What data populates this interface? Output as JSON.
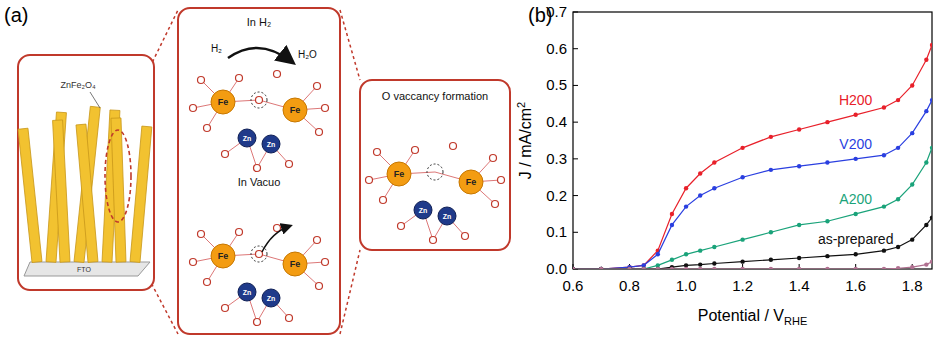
{
  "figure_labels": [
    "(a)",
    "(b)"
  ],
  "diagram": {
    "film_label": "ZnFe₂O₄",
    "substrate_label": "FTO",
    "middle_top_title": "In H₂",
    "middle_bottom_title": "In Vacuo",
    "reactant": "H₂",
    "product": "H₂O",
    "right_title": "O vaccancy formation",
    "atom_fe": "Fe",
    "atom_zn": "Zn"
  },
  "chart_data": {
    "type": "line",
    "x_label": "Potential / V",
    "x_label_subscript": "RHE",
    "y_label": "J / mA/cm",
    "y_label_superscript": "2",
    "x": [
      0.6,
      0.7,
      0.8,
      0.85,
      0.9,
      0.95,
      1.0,
      1.05,
      1.1,
      1.2,
      1.3,
      1.4,
      1.5,
      1.6,
      1.7,
      1.75,
      1.8,
      1.85,
      1.87
    ],
    "xlim": [
      0.6,
      1.87
    ],
    "xticks": [
      0.6,
      0.8,
      {
        "value": 1,
        "label": "1.0"
      },
      1.2,
      1.4,
      1.6,
      1.8
    ],
    "ylim": [
      0,
      0.7
    ],
    "yticks": [
      {
        "value": 0,
        "label": "0.0"
      },
      0.1,
      0.2,
      0.3,
      0.4,
      0.5,
      0.6,
      0.7
    ],
    "marker": "circle",
    "series": [
      {
        "name": "H200",
        "color": "#e8202a",
        "values": [
          0,
          0,
          0.005,
          0.01,
          0.05,
          0.15,
          0.22,
          0.26,
          0.29,
          0.33,
          0.36,
          0.38,
          0.4,
          0.42,
          0.44,
          0.46,
          0.5,
          0.57,
          0.61
        ]
      },
      {
        "name": "V200",
        "color": "#2a3fe0",
        "values": [
          0,
          0,
          0.005,
          0.01,
          0.04,
          0.12,
          0.17,
          0.2,
          0.22,
          0.25,
          0.27,
          0.28,
          0.29,
          0.3,
          0.31,
          0.33,
          0.37,
          0.43,
          0.46
        ]
      },
      {
        "name": "A200",
        "color": "#1aa37a",
        "values": [
          0,
          0,
          0,
          0,
          0.01,
          0.025,
          0.04,
          0.05,
          0.06,
          0.08,
          0.1,
          0.12,
          0.13,
          0.15,
          0.17,
          0.19,
          0.23,
          0.29,
          0.33
        ]
      },
      {
        "name": "as-prepared",
        "color": "#111111",
        "values": [
          0,
          0,
          0,
          0,
          0,
          0.005,
          0.01,
          0.012,
          0.015,
          0.02,
          0.025,
          0.03,
          0.035,
          0.04,
          0.05,
          0.06,
          0.08,
          0.12,
          0.14
        ]
      },
      {
        "color": "#b07090",
        "values": [
          0,
          0,
          0,
          0,
          0,
          0,
          0,
          0,
          0,
          0,
          0,
          0,
          0,
          0,
          0,
          0.002,
          0.005,
          0.012,
          0.02
        ]
      }
    ]
  }
}
